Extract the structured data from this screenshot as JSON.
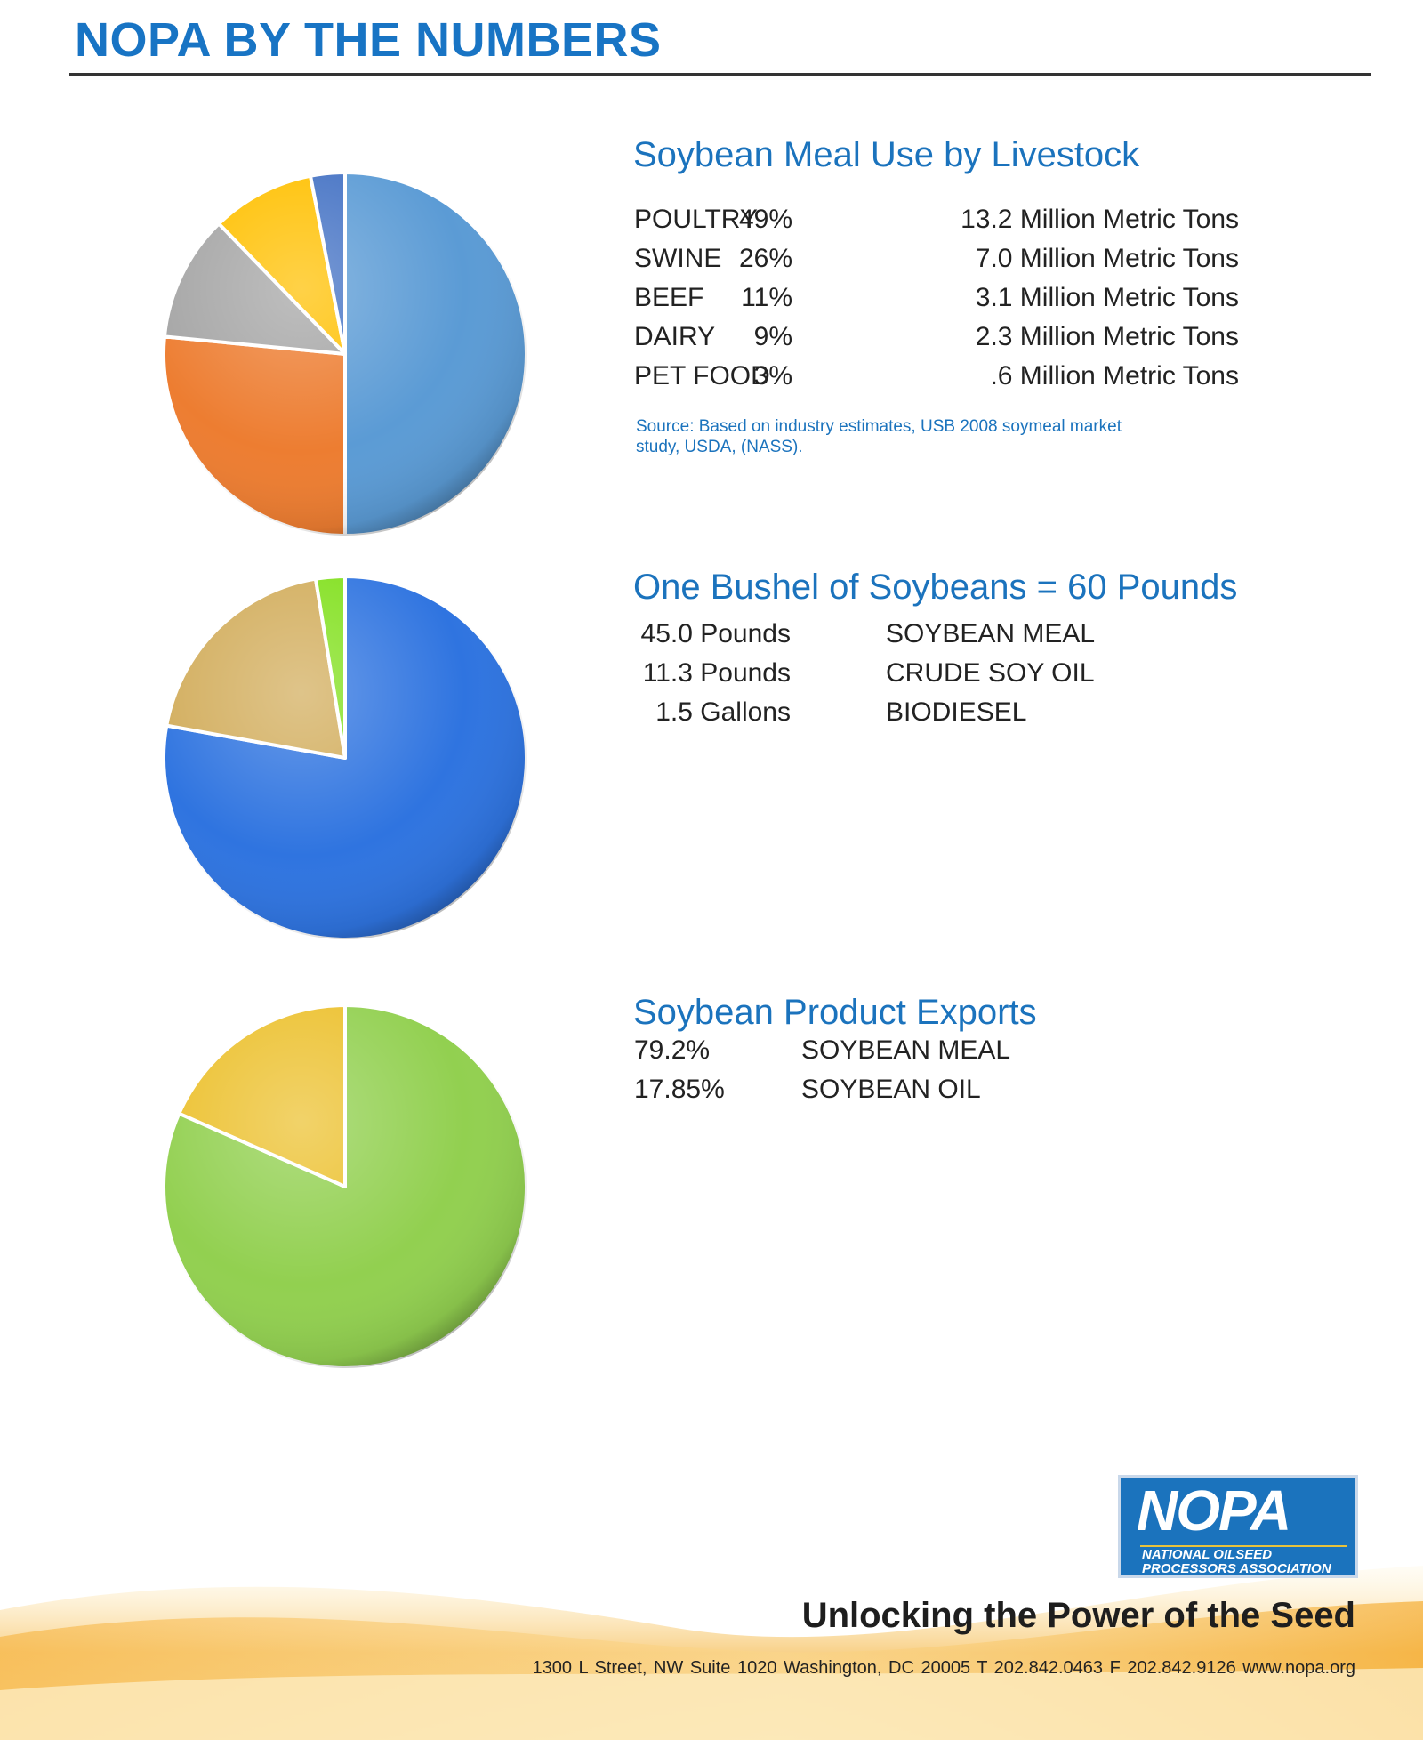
{
  "header": {
    "title": "NOPA BY THE NUMBERS"
  },
  "sections": [
    {
      "title": "Soybean Meal Use by Livestock",
      "rows": [
        {
          "label": "POULTRY",
          "pct": "49%",
          "amount": "13.2 Million Metric Tons"
        },
        {
          "label": "SWINE",
          "pct": "26%",
          "amount": "7.0 Million Metric Tons"
        },
        {
          "label": "BEEF",
          "pct": "11%",
          "amount": "3.1 Million Metric Tons"
        },
        {
          "label": "DAIRY",
          "pct": "9%",
          "amount": "2.3 Million Metric Tons"
        },
        {
          "label": "PET FOOD",
          "pct": "3%",
          "amount": ".6 Million Metric Tons"
        }
      ],
      "source": "Source: Based on industry estimates, USB 2008 soymeal market study,  USDA, (NASS)."
    },
    {
      "title": "One Bushel of Soybeans = 60 Pounds",
      "rows": [
        {
          "amount": "45.0  Pounds",
          "label": "SOYBEAN MEAL"
        },
        {
          "amount": "11.3  Pounds",
          "label": "CRUDE SOY OIL"
        },
        {
          "amount": "1.5  Gallons",
          "label": "BIODIESEL"
        }
      ]
    },
    {
      "title": "Soybean Product Exports",
      "rows": [
        {
          "pct": "79.2%",
          "label": "SOYBEAN MEAL"
        },
        {
          "pct": "17.85%",
          "label": "SOYBEAN OIL"
        }
      ]
    }
  ],
  "chart_data": [
    {
      "type": "pie",
      "categories": [
        "POULTRY",
        "SWINE",
        "BEEF",
        "DAIRY",
        "PET FOOD"
      ],
      "values": [
        49,
        26,
        11,
        9,
        3
      ],
      "colors": [
        "#5b9bd5",
        "#ed7d31",
        "#a5a5a5",
        "#ffc000",
        "#4472c4"
      ]
    },
    {
      "type": "pie",
      "categories": [
        "SOYBEAN MEAL",
        "CRUDE SOY OIL",
        "BIODIESEL"
      ],
      "values": [
        45.0,
        11.3,
        1.5
      ],
      "colors": [
        "#2f74e0",
        "#d2ad5c",
        "#82e01e"
      ]
    },
    {
      "type": "pie",
      "categories": [
        "SOYBEAN MEAL",
        "SOYBEAN OIL"
      ],
      "values": [
        79.2,
        17.85
      ],
      "colors": [
        "#92d050",
        "#ecc12f"
      ]
    }
  ],
  "logo": {
    "name": "NOPA",
    "subtitle": "NATIONAL OILSEED PROCESSORS ASSOCIATION"
  },
  "footer": {
    "tagline": "Unlocking the Power of the Seed",
    "address": "1300 L Street, NW    Suite 1020    Washington, DC 20005    T 202.842.0463    F 202.842.9126    www.nopa.org"
  }
}
